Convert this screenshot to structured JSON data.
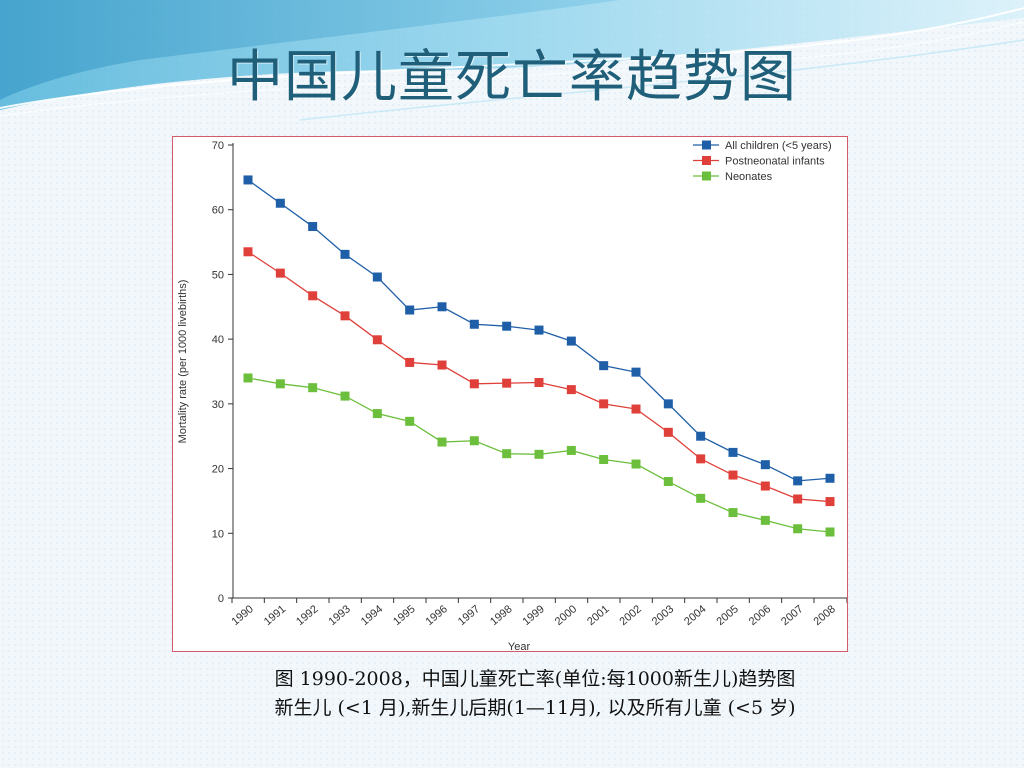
{
  "slide": {
    "title": "中国儿童死亡率趋势图",
    "caption_line1": "图   1990-2008，中国儿童死亡率(单位:每1000新生儿)趋势图",
    "caption_line2": "新生儿 (<1 月),新生儿后期(1—11月), 以及所有儿童 (<5 岁)"
  },
  "chart_data": {
    "type": "line",
    "title": "",
    "xlabel": "Year",
    "ylabel": "Mortality rate (per 1000 livebirths)",
    "ylim": [
      0,
      70
    ],
    "yticks": [
      0,
      10,
      20,
      30,
      40,
      50,
      60,
      70
    ],
    "grid": false,
    "legend_position": "top-right",
    "x": [
      "1990",
      "1991",
      "1992",
      "1993",
      "1994",
      "1995",
      "1996",
      "1997",
      "1998",
      "1999",
      "2000",
      "2001",
      "2002",
      "2003",
      "2004",
      "2005",
      "2006",
      "2007",
      "2008"
    ],
    "series": [
      {
        "name": "All children (<5 years)",
        "color": "#1f5fa8",
        "values": [
          64.6,
          61.0,
          57.4,
          53.1,
          49.6,
          44.5,
          45.0,
          42.3,
          42.0,
          41.4,
          39.7,
          35.9,
          34.9,
          30.0,
          25.0,
          22.5,
          20.6,
          18.1,
          18.5
        ]
      },
      {
        "name": "Postneonatal infants",
        "color": "#e0403a",
        "values": [
          53.5,
          50.2,
          46.7,
          43.6,
          39.9,
          36.4,
          36.0,
          33.1,
          33.2,
          33.3,
          32.2,
          30.0,
          29.2,
          25.6,
          21.5,
          19.0,
          17.3,
          15.3,
          14.9
        ]
      },
      {
        "name": "Neonates",
        "color": "#6cbf3c",
        "values": [
          34.0,
          33.1,
          32.5,
          31.2,
          28.5,
          27.3,
          24.1,
          24.3,
          22.3,
          22.2,
          22.8,
          21.4,
          20.7,
          18.0,
          15.4,
          13.2,
          12.0,
          10.7,
          10.2
        ]
      }
    ]
  }
}
